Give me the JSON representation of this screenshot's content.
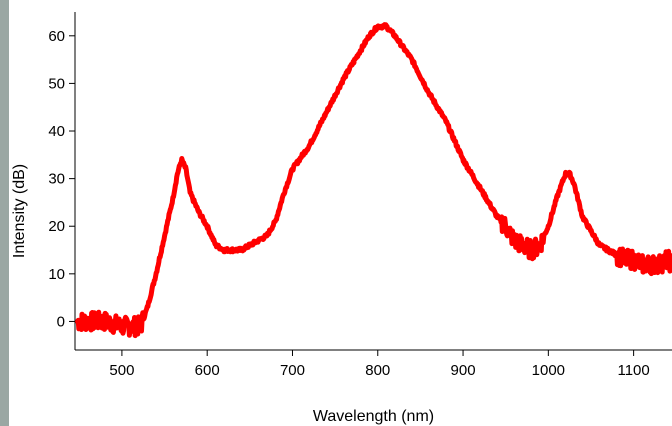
{
  "chart_data": {
    "type": "line",
    "title": "",
    "xlabel": "Wavelength (nm)",
    "ylabel": "Intensity (dB)",
    "xlim": [
      445,
      1145
    ],
    "ylim": [
      -6,
      65
    ],
    "x_ticks": [
      500,
      600,
      700,
      800,
      900,
      1000,
      1100
    ],
    "y_ticks": [
      0,
      10,
      20,
      30,
      40,
      50,
      60
    ],
    "grid": false,
    "legend": "none",
    "series": [
      {
        "color": "#ff0000",
        "noisy_x_ranges": [
          [
            448,
            525
          ],
          [
            945,
            995
          ],
          [
            1080,
            1145
          ]
        ],
        "x": [
          448,
          460,
          480,
          500,
          515,
          522,
          530,
          540,
          550,
          560,
          565,
          570,
          575,
          580,
          590,
          600,
          610,
          620,
          630,
          640,
          650,
          660,
          670,
          680,
          690,
          700,
          720,
          740,
          760,
          780,
          790,
          800,
          810,
          820,
          840,
          860,
          880,
          900,
          920,
          940,
          950,
          960,
          970,
          980,
          990,
          1000,
          1010,
          1020,
          1025,
          1030,
          1040,
          1050,
          1060,
          1070,
          1080,
          1090,
          1100,
          1110,
          1120,
          1130,
          1140,
          1145
        ],
        "y": [
          0,
          0,
          0,
          -1,
          -1,
          -1,
          3,
          10,
          18,
          26,
          31,
          34,
          32,
          27,
          23,
          20,
          16,
          15,
          15,
          15,
          16,
          17,
          18,
          21,
          27,
          32,
          37,
          44,
          51,
          57,
          60,
          62,
          62,
          60,
          55,
          48,
          42,
          34,
          28,
          22,
          20,
          17,
          16,
          15,
          16,
          20,
          26,
          31,
          31,
          29,
          22,
          19,
          16,
          15,
          14,
          13,
          13,
          12,
          12,
          12,
          13,
          12
        ]
      }
    ]
  }
}
